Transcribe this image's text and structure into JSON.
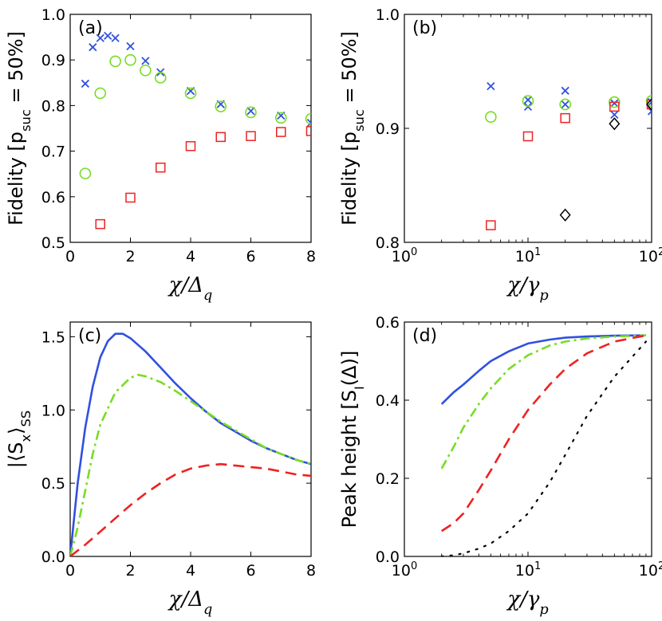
{
  "colors": {
    "blue": "#3050e0",
    "green": "#77dd22",
    "red": "#ee2222",
    "black": "#000000"
  },
  "chart_data": [
    {
      "id": "a",
      "panel_label": "(a)",
      "type": "scatter",
      "xscale": "linear",
      "xlim": [
        0,
        8
      ],
      "ylim": [
        0.5,
        1.0
      ],
      "xticks": [
        0,
        2,
        4,
        6,
        8
      ],
      "xtick_labels": [
        "0",
        "2",
        "4",
        "6",
        "8"
      ],
      "yticks": [
        0.5,
        0.6,
        0.7,
        0.8,
        0.9,
        1.0
      ],
      "ytick_labels": [
        "0.5",
        "0.6",
        "0.7",
        "0.8",
        "0.9",
        "1.0"
      ],
      "xlabel": {
        "pre": "χ/Δ",
        "sub": "q",
        "post": ""
      },
      "ylabel": {
        "pre": "Fidelity [p",
        "sub": "suc",
        "post": " = 50%]"
      },
      "series": [
        {
          "name": "blue crosses",
          "marker": "x",
          "color": "blue",
          "x": [
            0.5,
            0.75,
            1.0,
            1.25,
            1.5,
            2.0,
            2.5,
            3.0,
            4.0,
            5.0,
            6.0,
            7.0,
            8.0
          ],
          "y": [
            0.848,
            0.928,
            0.948,
            0.953,
            0.948,
            0.93,
            0.898,
            0.873,
            0.832,
            0.803,
            0.788,
            0.778,
            0.762
          ]
        },
        {
          "name": "green circles",
          "marker": "o",
          "color": "green",
          "x": [
            0.5,
            1.0,
            1.5,
            2.0,
            2.5,
            3.0,
            4.0,
            5.0,
            6.0,
            7.0,
            8.0
          ],
          "y": [
            0.651,
            0.827,
            0.897,
            0.9,
            0.877,
            0.861,
            0.827,
            0.798,
            0.785,
            0.773,
            0.771
          ]
        },
        {
          "name": "red squares",
          "marker": "s",
          "color": "red",
          "x": [
            1.0,
            2.0,
            3.0,
            4.0,
            5.0,
            6.0,
            7.0,
            8.0
          ],
          "y": [
            0.54,
            0.598,
            0.664,
            0.711,
            0.731,
            0.733,
            0.742,
            0.744
          ]
        }
      ]
    },
    {
      "id": "b",
      "panel_label": "(b)",
      "type": "scatter",
      "xscale": "log",
      "xlim": [
        1,
        100
      ],
      "ylim": [
        0.8,
        1.0
      ],
      "xticks": [
        1,
        10,
        100
      ],
      "xtick_labels": [
        [
          "10",
          "0"
        ],
        [
          "10",
          "1"
        ],
        [
          "10",
          "2"
        ]
      ],
      "yticks": [
        0.8,
        0.9,
        1.0
      ],
      "ytick_labels": [
        "0.8",
        "0.9",
        "1.0"
      ],
      "xlabel": {
        "pre": "χ/γ",
        "sub": "p",
        "post": ""
      },
      "ylabel": {
        "pre": "Fidelity [p",
        "sub": "suc",
        "post": " = 50%]"
      },
      "series": [
        {
          "name": "blue crosses",
          "marker": "x",
          "color": "blue",
          "x": [
            5,
            10,
            10,
            20,
            20,
            50,
            50,
            100,
            100
          ],
          "y": [
            0.937,
            0.919,
            0.925,
            0.933,
            0.921,
            0.922,
            0.912,
            0.923,
            0.915
          ]
        },
        {
          "name": "green circles",
          "marker": "o",
          "color": "green",
          "x": [
            5,
            10,
            20,
            50,
            100
          ],
          "y": [
            0.91,
            0.924,
            0.921,
            0.923,
            0.924
          ]
        },
        {
          "name": "red squares",
          "marker": "s",
          "color": "red",
          "x": [
            5,
            10,
            20,
            50,
            100
          ],
          "y": [
            0.815,
            0.893,
            0.909,
            0.919,
            0.921
          ]
        },
        {
          "name": "black diamonds",
          "marker": "d",
          "color": "black",
          "x": [
            20,
            50,
            100
          ],
          "y": [
            0.824,
            0.904,
            0.921
          ]
        }
      ]
    },
    {
      "id": "c",
      "panel_label": "(c)",
      "type": "line",
      "xscale": "linear",
      "xlim": [
        0,
        8
      ],
      "ylim": [
        0,
        1.6
      ],
      "xticks": [
        0,
        2,
        4,
        6,
        8
      ],
      "xtick_labels": [
        "0",
        "2",
        "4",
        "6",
        "8"
      ],
      "yticks": [
        0,
        0.5,
        1.0,
        1.5
      ],
      "ytick_labels": [
        "0.0",
        "0.5",
        "1.0",
        "1.5"
      ],
      "xlabel": {
        "pre": "χ/Δ",
        "sub": "q",
        "post": ""
      },
      "ylabel": {
        "pre": "|⟨S",
        "sub": "x",
        "post": "⟩",
        "sub2": "SS"
      },
      "series": [
        {
          "name": "blue solid",
          "style": "solid",
          "color": "blue",
          "x": [
            0,
            0.25,
            0.5,
            0.75,
            1.0,
            1.25,
            1.5,
            1.75,
            2.0,
            2.5,
            3.0,
            3.5,
            4.0,
            4.5,
            5.0,
            5.5,
            6.0,
            6.5,
            7.0,
            7.5,
            8.0
          ],
          "y": [
            0,
            0.5,
            0.88,
            1.16,
            1.36,
            1.47,
            1.52,
            1.52,
            1.49,
            1.4,
            1.29,
            1.18,
            1.08,
            0.99,
            0.91,
            0.85,
            0.79,
            0.74,
            0.7,
            0.66,
            0.63
          ]
        },
        {
          "name": "green dash-dot",
          "style": "dashdot",
          "color": "green",
          "x": [
            0,
            0.25,
            0.5,
            0.75,
            1.0,
            1.5,
            2.0,
            2.25,
            2.5,
            3.0,
            3.5,
            4.0,
            4.5,
            5.0,
            5.5,
            6.0,
            6.5,
            7.0,
            7.5,
            8.0
          ],
          "y": [
            0,
            0.2,
            0.45,
            0.7,
            0.9,
            1.12,
            1.22,
            1.24,
            1.23,
            1.19,
            1.13,
            1.06,
            0.99,
            0.92,
            0.86,
            0.8,
            0.74,
            0.7,
            0.66,
            0.63
          ]
        },
        {
          "name": "red dashed",
          "style": "dashed",
          "color": "red",
          "x": [
            0,
            0.5,
            1.0,
            1.5,
            2.0,
            2.5,
            3.0,
            3.5,
            4.0,
            4.5,
            5.0,
            5.5,
            6.0,
            6.5,
            7.0,
            7.5,
            8.0
          ],
          "y": [
            0,
            0.08,
            0.17,
            0.26,
            0.35,
            0.43,
            0.5,
            0.56,
            0.6,
            0.62,
            0.63,
            0.62,
            0.61,
            0.6,
            0.58,
            0.56,
            0.55
          ]
        }
      ]
    },
    {
      "id": "d",
      "panel_label": "(d)",
      "type": "line",
      "xscale": "log",
      "xlim": [
        1,
        100
      ],
      "ylim": [
        0,
        0.6
      ],
      "xticks": [
        1,
        10,
        100
      ],
      "xtick_labels": [
        [
          "10",
          "0"
        ],
        [
          "10",
          "1"
        ],
        [
          "10",
          "2"
        ]
      ],
      "yticks": [
        0,
        0.2,
        0.4,
        0.6
      ],
      "ytick_labels": [
        "0.0",
        "0.2",
        "0.4",
        "0.6"
      ],
      "xlabel": {
        "pre": "χ/γ",
        "sub": "p",
        "post": ""
      },
      "ylabel": {
        "pre": "Peak height [S",
        "sub": "I",
        "post": "(Δ)]"
      },
      "series": [
        {
          "name": "blue solid",
          "style": "solid",
          "color": "blue",
          "x": [
            2,
            2.5,
            3,
            4,
            5,
            7,
            10,
            15,
            20,
            30,
            50,
            90
          ],
          "y": [
            0.39,
            0.42,
            0.44,
            0.475,
            0.5,
            0.525,
            0.545,
            0.555,
            0.56,
            0.563,
            0.565,
            0.566
          ]
        },
        {
          "name": "green dash-dot",
          "style": "dashdot",
          "color": "green",
          "x": [
            2,
            2.5,
            3,
            4,
            5,
            7,
            10,
            15,
            20,
            30,
            50,
            90
          ],
          "y": [
            0.225,
            0.28,
            0.33,
            0.39,
            0.43,
            0.48,
            0.515,
            0.54,
            0.55,
            0.558,
            0.563,
            0.566
          ]
        },
        {
          "name": "red dashed",
          "style": "dashed",
          "color": "red",
          "x": [
            2,
            2.5,
            3,
            4,
            5,
            7,
            10,
            15,
            20,
            30,
            50,
            90
          ],
          "y": [
            0.065,
            0.085,
            0.11,
            0.17,
            0.22,
            0.3,
            0.375,
            0.44,
            0.48,
            0.52,
            0.55,
            0.566
          ]
        },
        {
          "name": "black dotted",
          "style": "dotted",
          "color": "black",
          "x": [
            2,
            2.5,
            3,
            4,
            5,
            7,
            10,
            15,
            20,
            30,
            50,
            90
          ],
          "y": [
            0,
            0.003,
            0.008,
            0.02,
            0.033,
            0.065,
            0.11,
            0.19,
            0.26,
            0.36,
            0.46,
            0.55
          ]
        }
      ]
    }
  ]
}
